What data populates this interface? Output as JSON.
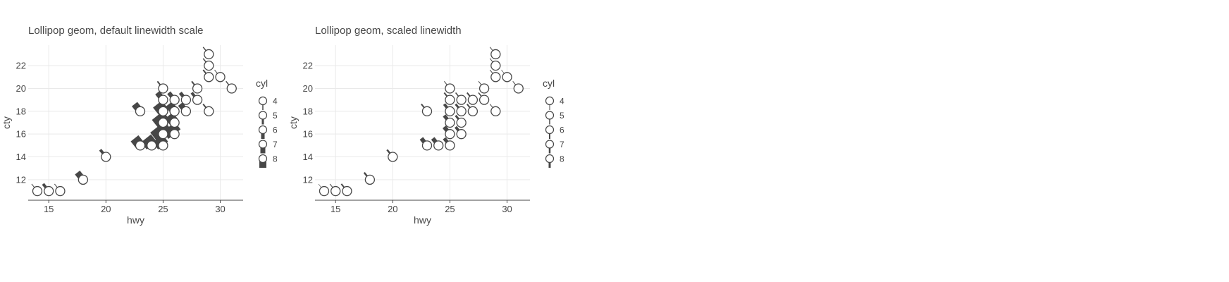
{
  "chart_data": [
    {
      "type": "scatter",
      "title": "Lollipop geom, default linewidth scale",
      "xlabel": "hwy",
      "ylabel": "cty",
      "xlim": [
        13.2,
        32.0
      ],
      "ylim": [
        10.2,
        23.8
      ],
      "xticks": [
        15,
        20,
        25,
        30
      ],
      "yticks": [
        12,
        14,
        16,
        18,
        20,
        22
      ],
      "grid": true,
      "legend": {
        "title": "cyl",
        "position": "right",
        "entries": [
          "4",
          "5",
          "6",
          "7",
          "8"
        ],
        "stick_widths": [
          1.5,
          3,
          5,
          7,
          10
        ]
      },
      "color": "#474747",
      "slope": -1.5,
      "points": [
        {
          "x": 14,
          "y": 11,
          "w": 1
        },
        {
          "x": 15,
          "y": 11,
          "w": 4
        },
        {
          "x": 16,
          "y": 11,
          "w": 1
        },
        {
          "x": 18,
          "y": 12,
          "w": 9
        },
        {
          "x": 20,
          "y": 14,
          "w": 4
        },
        {
          "x": 23,
          "y": 15,
          "w": 14
        },
        {
          "x": 24,
          "y": 15,
          "w": 18
        },
        {
          "x": 25,
          "y": 15,
          "w": 18
        },
        {
          "x": 25,
          "y": 16,
          "w": 26
        },
        {
          "x": 26,
          "y": 16,
          "w": 22
        },
        {
          "x": 25,
          "y": 17,
          "w": 20
        },
        {
          "x": 26,
          "y": 17,
          "w": 14
        },
        {
          "x": 23,
          "y": 18,
          "w": 10
        },
        {
          "x": 25,
          "y": 18,
          "w": 16
        },
        {
          "x": 26,
          "y": 18,
          "w": 12
        },
        {
          "x": 27,
          "y": 18,
          "w": 8
        },
        {
          "x": 29,
          "y": 18,
          "w": 2
        },
        {
          "x": 25,
          "y": 19,
          "w": 8
        },
        {
          "x": 26,
          "y": 19,
          "w": 6
        },
        {
          "x": 27,
          "y": 19,
          "w": 5
        },
        {
          "x": 28,
          "y": 19,
          "w": 4
        },
        {
          "x": 25,
          "y": 20,
          "w": 2
        },
        {
          "x": 28,
          "y": 20,
          "w": 2
        },
        {
          "x": 31,
          "y": 20,
          "w": 1.5
        },
        {
          "x": 29,
          "y": 21,
          "w": 2
        },
        {
          "x": 30,
          "y": 21,
          "w": 1
        },
        {
          "x": 29,
          "y": 22,
          "w": 1.5
        },
        {
          "x": 29,
          "y": 23,
          "w": 1.5
        }
      ]
    },
    {
      "type": "scatter",
      "title": "Lollipop geom, scaled linewidth",
      "xlabel": "hwy",
      "ylabel": "cty",
      "xlim": [
        13.2,
        32.0
      ],
      "ylim": [
        10.2,
        23.8
      ],
      "xticks": [
        15,
        20,
        25,
        30
      ],
      "yticks": [
        12,
        14,
        16,
        18,
        20,
        22
      ],
      "grid": true,
      "legend": {
        "title": "cyl",
        "position": "right",
        "entries": [
          "4",
          "5",
          "6",
          "7",
          "8"
        ],
        "stick_widths": [
          1,
          1.5,
          2,
          2.5,
          3
        ]
      },
      "color": "#474747",
      "slope": -1.5,
      "points": [
        {
          "x": 14,
          "y": 11,
          "w": 0.6
        },
        {
          "x": 15,
          "y": 11,
          "w": 1
        },
        {
          "x": 16,
          "y": 11,
          "w": 2
        },
        {
          "x": 18,
          "y": 12,
          "w": 2.5
        },
        {
          "x": 20,
          "y": 14,
          "w": 2.5
        },
        {
          "x": 23,
          "y": 15,
          "w": 6
        },
        {
          "x": 24,
          "y": 15,
          "w": 6
        },
        {
          "x": 25,
          "y": 15,
          "w": 5
        },
        {
          "x": 25,
          "y": 16,
          "w": 6
        },
        {
          "x": 26,
          "y": 16,
          "w": 4
        },
        {
          "x": 25,
          "y": 17,
          "w": 5
        },
        {
          "x": 26,
          "y": 17,
          "w": 3
        },
        {
          "x": 23,
          "y": 18,
          "w": 2
        },
        {
          "x": 25,
          "y": 18,
          "w": 4
        },
        {
          "x": 26,
          "y": 18,
          "w": 3
        },
        {
          "x": 27,
          "y": 18,
          "w": 2
        },
        {
          "x": 29,
          "y": 18,
          "w": 1
        },
        {
          "x": 25,
          "y": 19,
          "w": 2
        },
        {
          "x": 26,
          "y": 19,
          "w": 1.5
        },
        {
          "x": 27,
          "y": 19,
          "w": 2
        },
        {
          "x": 28,
          "y": 19,
          "w": 1.5
        },
        {
          "x": 25,
          "y": 20,
          "w": 1
        },
        {
          "x": 28,
          "y": 20,
          "w": 1
        },
        {
          "x": 31,
          "y": 20,
          "w": 1
        },
        {
          "x": 29,
          "y": 21,
          "w": 1
        },
        {
          "x": 30,
          "y": 21,
          "w": 0.7
        },
        {
          "x": 29,
          "y": 22,
          "w": 1
        },
        {
          "x": 29,
          "y": 23,
          "w": 1
        }
      ]
    }
  ]
}
